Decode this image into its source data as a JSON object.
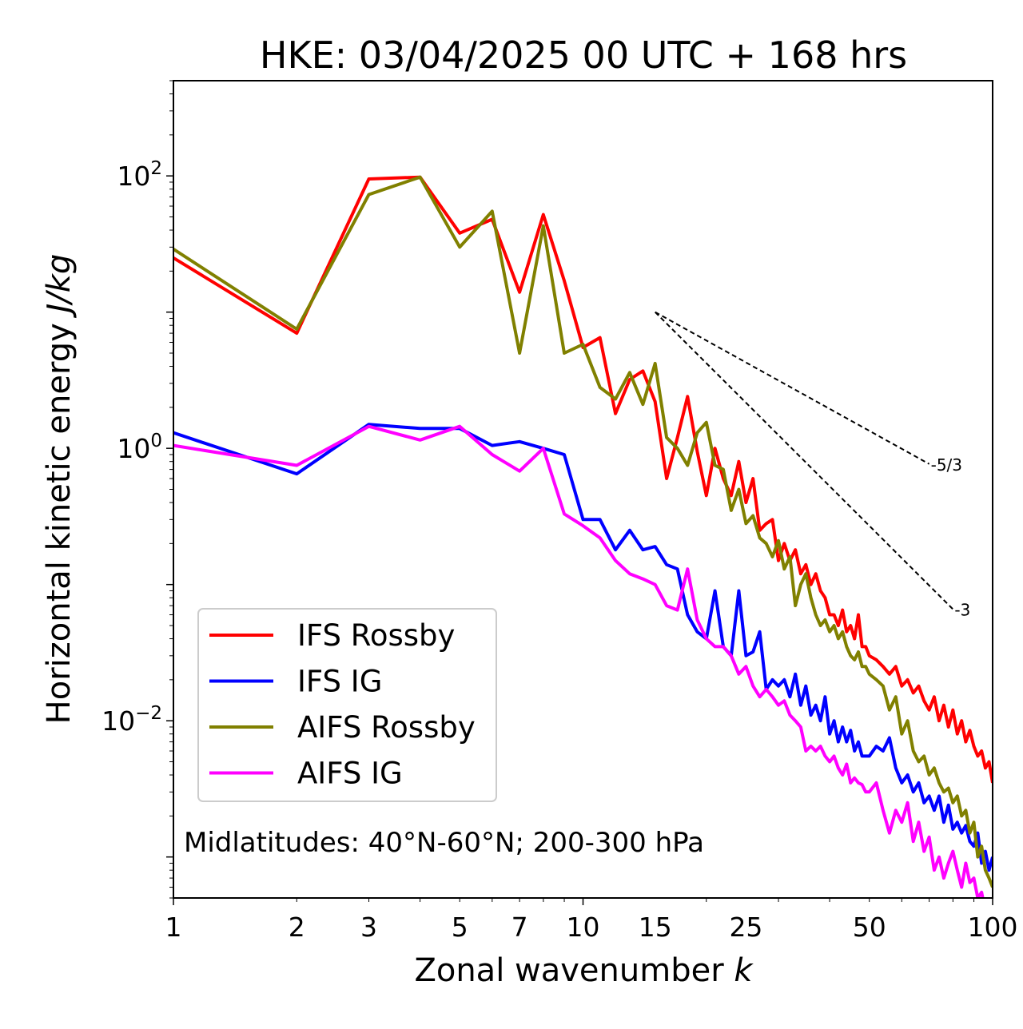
{
  "chart_data": {
    "type": "line",
    "title": "HKE: 03/04/2025 00 UTC + 168 hrs",
    "xlabel_text": "Zonal wavenumber ",
    "xlabel_italic": "k",
    "ylabel_text": "Horizontal kinetic energy ",
    "ylabel_italic": "J/kg",
    "x_scale": "log",
    "y_scale": "log",
    "xlim": [
      1,
      100
    ],
    "ylim": [
      0.0005,
      500
    ],
    "x_ticks": [
      1,
      2,
      3,
      5,
      7,
      10,
      15,
      25,
      50,
      100
    ],
    "x_tick_labels": [
      "1",
      "2",
      "3",
      "5",
      "7",
      "10",
      "15",
      "25",
      "50",
      "100"
    ],
    "y_ticks": [
      {
        "value": 100,
        "base": "10",
        "exp": "2"
      },
      {
        "value": 1,
        "base": "10",
        "exp": "0"
      },
      {
        "value": 0.01,
        "base": "10",
        "exp": "−2"
      }
    ],
    "grid": false,
    "legend_position": "lower-left",
    "annotation": "Midlatitudes: 40°N-60°N; 200-300 hPa",
    "reference_slopes": [
      {
        "label": "-5/3",
        "slope": -1.6667,
        "x_start": 15,
        "y_start": 10,
        "x_end": 70
      },
      {
        "label": "-3",
        "slope": -3,
        "x_start": 15,
        "y_start": 10,
        "x_end": 80
      }
    ],
    "series": [
      {
        "name": "IFS Rossby",
        "color": "#ff0000",
        "points": [
          [
            1,
            25
          ],
          [
            2,
            7
          ],
          [
            3,
            95
          ],
          [
            4,
            98
          ],
          [
            5,
            38
          ],
          [
            6,
            48
          ],
          [
            7,
            14
          ],
          [
            8,
            52
          ],
          [
            9,
            17
          ],
          [
            10,
            5.5
          ],
          [
            11,
            6.5
          ],
          [
            12,
            1.8
          ],
          [
            13,
            3.2
          ],
          [
            14,
            3.7
          ],
          [
            15,
            2.2
          ],
          [
            16,
            0.6
          ],
          [
            17,
            1.2
          ],
          [
            18,
            2.4
          ],
          [
            19,
            0.95
          ],
          [
            20,
            0.45
          ],
          [
            21,
            1.0
          ],
          [
            22,
            0.6
          ],
          [
            23,
            0.45
          ],
          [
            24,
            0.8
          ],
          [
            25,
            0.4
          ],
          [
            26,
            0.6
          ],
          [
            27,
            0.25
          ],
          [
            28,
            0.28
          ],
          [
            29,
            0.3
          ],
          [
            30,
            0.15
          ],
          [
            31,
            0.2
          ],
          [
            32,
            0.15
          ],
          [
            33,
            0.18
          ],
          [
            34,
            0.12
          ],
          [
            35,
            0.14
          ],
          [
            36,
            0.1
          ],
          [
            37,
            0.12
          ],
          [
            38,
            0.09
          ],
          [
            39,
            0.08
          ],
          [
            40,
            0.06
          ],
          [
            41,
            0.06
          ],
          [
            42,
            0.05
          ],
          [
            43,
            0.065
          ],
          [
            44,
            0.045
          ],
          [
            45,
            0.05
          ],
          [
            46,
            0.04
          ],
          [
            47,
            0.06
          ],
          [
            48,
            0.035
          ],
          [
            49,
            0.035
          ],
          [
            50,
            0.03
          ],
          [
            52,
            0.028
          ],
          [
            54,
            0.025
          ],
          [
            56,
            0.022
          ],
          [
            58,
            0.025
          ],
          [
            60,
            0.018
          ],
          [
            62,
            0.02
          ],
          [
            64,
            0.016
          ],
          [
            66,
            0.018
          ],
          [
            68,
            0.014
          ],
          [
            70,
            0.012
          ],
          [
            72,
            0.015
          ],
          [
            74,
            0.01
          ],
          [
            76,
            0.013
          ],
          [
            78,
            0.009
          ],
          [
            80,
            0.012
          ],
          [
            82,
            0.008
          ],
          [
            84,
            0.01
          ],
          [
            86,
            0.007
          ],
          [
            88,
            0.0085
          ],
          [
            90,
            0.0065
          ],
          [
            92,
            0.0055
          ],
          [
            94,
            0.006
          ],
          [
            96,
            0.0045
          ],
          [
            98,
            0.005
          ],
          [
            100,
            0.0035
          ]
        ]
      },
      {
        "name": "IFS IG",
        "color": "#0000ff",
        "points": [
          [
            1,
            1.3
          ],
          [
            2,
            0.65
          ],
          [
            3,
            1.5
          ],
          [
            4,
            1.4
          ],
          [
            5,
            1.4
          ],
          [
            6,
            1.05
          ],
          [
            7,
            1.12
          ],
          [
            8,
            1.0
          ],
          [
            9,
            0.9
          ],
          [
            10,
            0.3
          ],
          [
            11,
            0.3
          ],
          [
            12,
            0.18
          ],
          [
            13,
            0.25
          ],
          [
            14,
            0.18
          ],
          [
            15,
            0.19
          ],
          [
            16,
            0.14
          ],
          [
            17,
            0.13
          ],
          [
            18,
            0.06
          ],
          [
            19,
            0.045
          ],
          [
            20,
            0.04
          ],
          [
            21,
            0.09
          ],
          [
            22,
            0.035
          ],
          [
            23,
            0.03
          ],
          [
            24,
            0.09
          ],
          [
            25,
            0.03
          ],
          [
            26,
            0.032
          ],
          [
            27,
            0.045
          ],
          [
            28,
            0.017
          ],
          [
            29,
            0.02
          ],
          [
            30,
            0.018
          ],
          [
            31,
            0.02
          ],
          [
            32,
            0.015
          ],
          [
            33,
            0.022
          ],
          [
            34,
            0.013
          ],
          [
            35,
            0.018
          ],
          [
            36,
            0.011
          ],
          [
            37,
            0.013
          ],
          [
            38,
            0.01
          ],
          [
            39,
            0.015
          ],
          [
            40,
            0.008
          ],
          [
            41,
            0.01
          ],
          [
            42,
            0.007
          ],
          [
            43,
            0.009
          ],
          [
            44,
            0.007
          ],
          [
            45,
            0.0085
          ],
          [
            46,
            0.006
          ],
          [
            47,
            0.007
          ],
          [
            48,
            0.0055
          ],
          [
            49,
            0.0055
          ],
          [
            50,
            0.0055
          ],
          [
            52,
            0.0065
          ],
          [
            54,
            0.006
          ],
          [
            56,
            0.0075
          ],
          [
            58,
            0.0045
          ],
          [
            60,
            0.0035
          ],
          [
            62,
            0.004
          ],
          [
            64,
            0.003
          ],
          [
            66,
            0.0035
          ],
          [
            68,
            0.0025
          ],
          [
            70,
            0.0028
          ],
          [
            72,
            0.0022
          ],
          [
            74,
            0.0028
          ],
          [
            76,
            0.0018
          ],
          [
            78,
            0.0024
          ],
          [
            80,
            0.0016
          ],
          [
            82,
            0.0018
          ],
          [
            84,
            0.0015
          ],
          [
            86,
            0.0017
          ],
          [
            88,
            0.0013
          ],
          [
            90,
            0.0012
          ],
          [
            92,
            0.0015
          ],
          [
            94,
            0.0009
          ],
          [
            96,
            0.0011
          ],
          [
            98,
            0.0008
          ],
          [
            100,
            0.001
          ]
        ]
      },
      {
        "name": "AIFS Rossby",
        "color": "#808000",
        "points": [
          [
            1,
            29
          ],
          [
            2,
            7.5
          ],
          [
            3,
            73
          ],
          [
            4,
            98
          ],
          [
            5,
            30
          ],
          [
            6,
            55
          ],
          [
            7,
            5
          ],
          [
            8,
            43
          ],
          [
            9,
            5
          ],
          [
            10,
            5.8
          ],
          [
            11,
            2.8
          ],
          [
            12,
            2.3
          ],
          [
            13,
            3.6
          ],
          [
            14,
            2.1
          ],
          [
            15,
            4.2
          ],
          [
            16,
            1.2
          ],
          [
            17,
            1.0
          ],
          [
            18,
            0.75
          ],
          [
            19,
            1.3
          ],
          [
            20,
            1.55
          ],
          [
            21,
            0.75
          ],
          [
            22,
            0.7
          ],
          [
            23,
            0.35
          ],
          [
            24,
            0.5
          ],
          [
            25,
            0.28
          ],
          [
            26,
            0.32
          ],
          [
            27,
            0.22
          ],
          [
            28,
            0.2
          ],
          [
            29,
            0.16
          ],
          [
            30,
            0.21
          ],
          [
            31,
            0.13
          ],
          [
            32,
            0.16
          ],
          [
            33,
            0.07
          ],
          [
            34,
            0.1
          ],
          [
            35,
            0.12
          ],
          [
            36,
            0.08
          ],
          [
            37,
            0.06
          ],
          [
            38,
            0.05
          ],
          [
            39,
            0.055
          ],
          [
            40,
            0.045
          ],
          [
            41,
            0.05
          ],
          [
            42,
            0.04
          ],
          [
            43,
            0.045
          ],
          [
            44,
            0.035
          ],
          [
            45,
            0.03
          ],
          [
            46,
            0.028
          ],
          [
            47,
            0.032
          ],
          [
            48,
            0.025
          ],
          [
            49,
            0.025
          ],
          [
            50,
            0.022
          ],
          [
            52,
            0.02
          ],
          [
            54,
            0.018
          ],
          [
            56,
            0.012
          ],
          [
            58,
            0.015
          ],
          [
            60,
            0.008
          ],
          [
            62,
            0.01
          ],
          [
            64,
            0.006
          ],
          [
            66,
            0.005
          ],
          [
            68,
            0.0055
          ],
          [
            70,
            0.004
          ],
          [
            72,
            0.0045
          ],
          [
            74,
            0.0035
          ],
          [
            76,
            0.003
          ],
          [
            78,
            0.0032
          ],
          [
            80,
            0.0025
          ],
          [
            82,
            0.0028
          ],
          [
            84,
            0.002
          ],
          [
            86,
            0.0022
          ],
          [
            88,
            0.0015
          ],
          [
            90,
            0.0018
          ],
          [
            92,
            0.001
          ],
          [
            94,
            0.0012
          ],
          [
            96,
            0.0008
          ],
          [
            98,
            0.0007
          ],
          [
            100,
            0.0006
          ]
        ]
      },
      {
        "name": "AIFS IG",
        "color": "#ff00ff",
        "points": [
          [
            1,
            1.05
          ],
          [
            2,
            0.75
          ],
          [
            3,
            1.45
          ],
          [
            4,
            1.15
          ],
          [
            5,
            1.45
          ],
          [
            6,
            0.9
          ],
          [
            7,
            0.68
          ],
          [
            8,
            1.0
          ],
          [
            9,
            0.33
          ],
          [
            10,
            0.27
          ],
          [
            11,
            0.22
          ],
          [
            12,
            0.15
          ],
          [
            13,
            0.12
          ],
          [
            14,
            0.11
          ],
          [
            15,
            0.1
          ],
          [
            16,
            0.07
          ],
          [
            17,
            0.065
          ],
          [
            18,
            0.13
          ],
          [
            19,
            0.055
          ],
          [
            20,
            0.04
          ],
          [
            21,
            0.035
          ],
          [
            22,
            0.035
          ],
          [
            23,
            0.03
          ],
          [
            24,
            0.022
          ],
          [
            25,
            0.025
          ],
          [
            26,
            0.018
          ],
          [
            27,
            0.015
          ],
          [
            28,
            0.017
          ],
          [
            29,
            0.015
          ],
          [
            30,
            0.013
          ],
          [
            31,
            0.014
          ],
          [
            32,
            0.011
          ],
          [
            33,
            0.01
          ],
          [
            34,
            0.009
          ],
          [
            35,
            0.006
          ],
          [
            36,
            0.0065
          ],
          [
            37,
            0.006
          ],
          [
            38,
            0.0065
          ],
          [
            39,
            0.0055
          ],
          [
            40,
            0.005
          ],
          [
            41,
            0.0055
          ],
          [
            42,
            0.0045
          ],
          [
            43,
            0.004
          ],
          [
            44,
            0.0048
          ],
          [
            45,
            0.0035
          ],
          [
            46,
            0.0038
          ],
          [
            47,
            0.0035
          ],
          [
            48,
            0.0034
          ],
          [
            49,
            0.003
          ],
          [
            50,
            0.003
          ],
          [
            52,
            0.0035
          ],
          [
            54,
            0.0022
          ],
          [
            56,
            0.0015
          ],
          [
            58,
            0.0022
          ],
          [
            60,
            0.0018
          ],
          [
            62,
            0.0025
          ],
          [
            64,
            0.0013
          ],
          [
            66,
            0.0018
          ],
          [
            68,
            0.0011
          ],
          [
            70,
            0.0014
          ],
          [
            72,
            0.0008
          ],
          [
            74,
            0.001
          ],
          [
            76,
            0.0007
          ],
          [
            78,
            0.0009
          ],
          [
            80,
            0.0011
          ],
          [
            82,
            0.0008
          ],
          [
            84,
            0.0006
          ],
          [
            86,
            0.0009
          ],
          [
            88,
            0.00065
          ],
          [
            90,
            0.0007
          ],
          [
            92,
            0.0005
          ],
          [
            94,
            0.00055
          ],
          [
            96,
            0.0004
          ],
          [
            98,
            0.00045
          ],
          [
            100,
            0.00035
          ]
        ]
      }
    ]
  }
}
